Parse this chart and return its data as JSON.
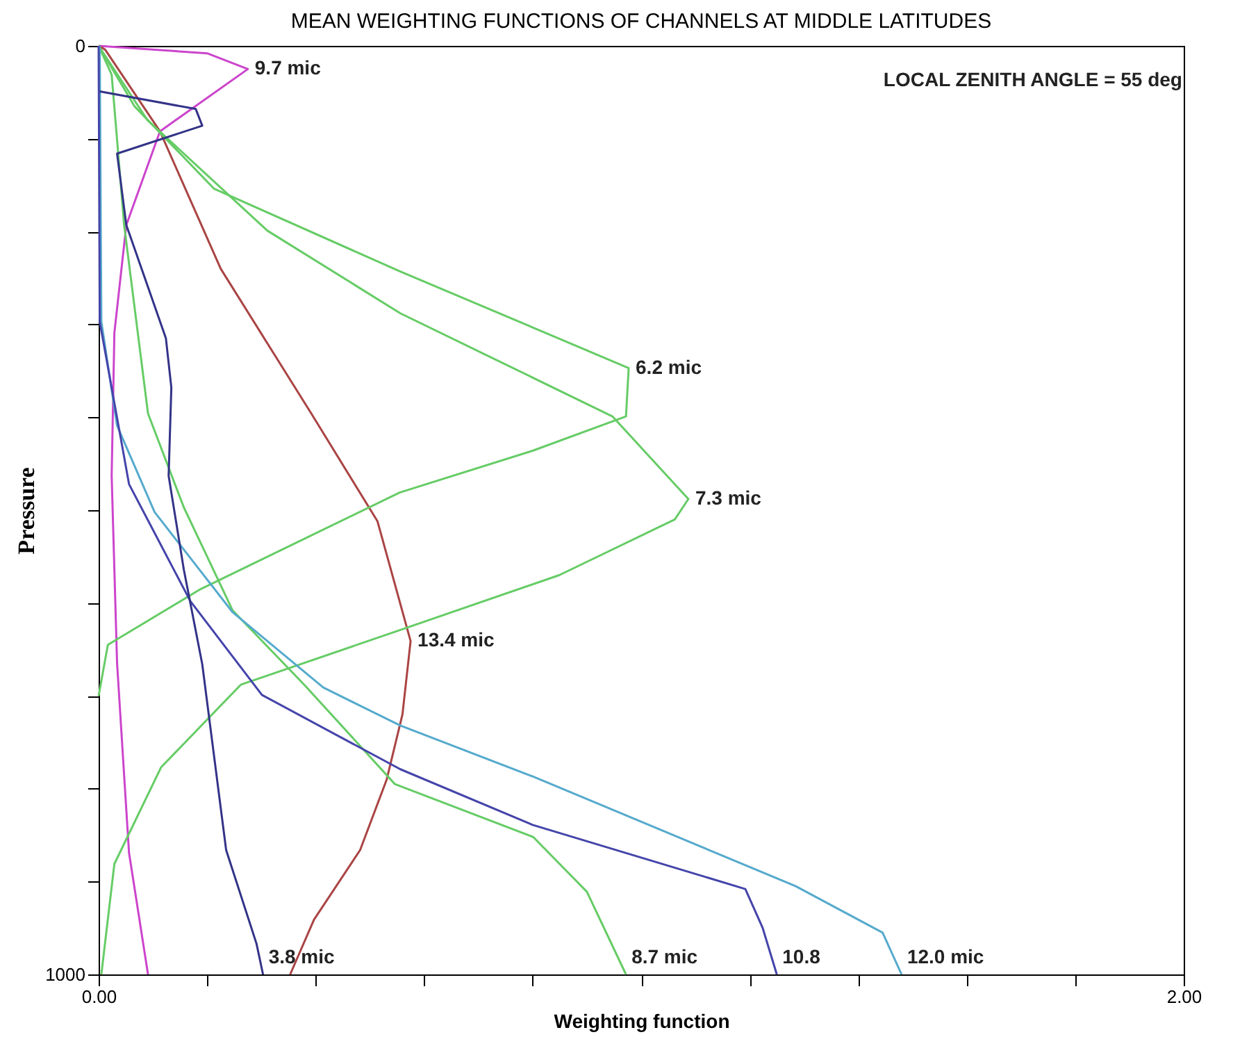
{
  "chart_data": {
    "type": "line",
    "orientation": "horizontal",
    "title": "MEAN WEIGHTING FUNCTIONS OF CHANNELS AT MIDDLE LATITUDES",
    "xlabel": "Weighting function",
    "ylabel": "Pressure",
    "xlim": [
      0,
      2
    ],
    "xticks": [
      {
        "value": 0,
        "label": "0.00"
      },
      {
        "value": 0.2,
        "label": null
      },
      {
        "value": 0.4,
        "label": null
      },
      {
        "value": 0.6,
        "label": null
      },
      {
        "value": 0.8,
        "label": null
      },
      {
        "value": 1.0,
        "label": null
      },
      {
        "value": 1.2,
        "label": null
      },
      {
        "value": 1.4,
        "label": null
      },
      {
        "value": 1.6,
        "label": null
      },
      {
        "value": 1.8,
        "label": null
      },
      {
        "value": 2,
        "label": "2.00"
      }
    ],
    "ylim": [
      1000,
      0
    ],
    "yticks": [
      0,
      {
        "value": 100,
        "label": null
      },
      {
        "value": 200,
        "label": null
      },
      {
        "value": 300,
        "label": null
      },
      {
        "value": 400,
        "label": null
      },
      {
        "value": 500,
        "label": null
      },
      {
        "value": 600,
        "label": null
      },
      {
        "value": 700,
        "label": null
      },
      {
        "value": 800,
        "label": null
      },
      {
        "value": 900,
        "label": null
      },
      1000
    ],
    "grid": false,
    "marker": "none",
    "line_style": "solid",
    "series": [
      {
        "name": "9.7 mic",
        "color": "#cc44cc",
        "values": [
          0,
          0.2,
          0.275,
          0.113,
          0.051,
          0.029,
          0.024,
          0.034,
          0.056,
          0.091
        ],
        "x": [
          0,
          8,
          25,
          92,
          193,
          309,
          463,
          665,
          869,
          1000
        ]
      },
      {
        "name": "13.4 mic",
        "color": "#aa4444",
        "values": [
          0,
          0.012,
          0.113,
          0.225,
          0.392,
          0.514,
          0.575,
          0.56,
          0.531,
          0.482,
          0.397,
          0.353
        ],
        "x": [
          0,
          4,
          92,
          240,
          396,
          512,
          641,
          720,
          790,
          866,
          941,
          1000
        ]
      },
      {
        "name": "6.2 mic",
        "color": "#66cc66",
        "values": [
          0,
          0.066,
          0.213,
          0.556,
          0.977,
          0.972,
          0.8,
          0.555,
          0.188,
          0.017,
          0
        ],
        "x": [
          0,
          65,
          154,
          243,
          347,
          399,
          436,
          481,
          585,
          645,
          700
        ]
      },
      {
        "name": "7.3 mic",
        "color": "#66cc66",
        "values": [
          0,
          0.09,
          0.311,
          0.556,
          0.947,
          1.087,
          1.062,
          0.849,
          0.556,
          0.262,
          0.115,
          0.029,
          0.005
        ],
        "x": [
          0,
          80,
          199,
          288,
          399,
          488,
          510,
          570,
          629,
          688,
          777,
          881,
          1000
        ]
      },
      {
        "name": "8.7 mic",
        "color": "#66cc66",
        "values": [
          0,
          0.024,
          0.047,
          0.091,
          0.157,
          0.247,
          0.379,
          0.546,
          0.801,
          0.9,
          0.972
        ],
        "x": [
          0,
          31,
          193,
          396,
          497,
          608,
          688,
          795,
          852,
          911,
          1000
        ]
      },
      {
        "name": "12.0 mic",
        "color": "#55aacc",
        "values": [
          0.002,
          0.005,
          0.034,
          0.103,
          0.247,
          0.414,
          0.556,
          0.801,
          1.285,
          1.445,
          1.48
        ],
        "x": [
          0,
          297,
          409,
          502,
          610,
          691,
          732,
          787,
          905,
          955,
          1000
        ]
      },
      {
        "name": "10.8",
        "color": "#4444aa",
        "values": [
          0,
          0.002,
          0.056,
          0.169,
          0.301,
          0.556,
          0.8,
          1.192,
          1.224,
          1.25
        ],
        "x": [
          0,
          297,
          472,
          598,
          699,
          779,
          839,
          908,
          950,
          1000
        ]
      },
      {
        "name": "3.8 mic",
        "color": "#333388",
        "values": [
          0.002,
          0.179,
          0.191,
          0.034,
          0.051,
          0.124,
          0.134,
          0.129,
          0.157,
          0.191,
          0.235,
          0.291,
          0.303
        ],
        "x": [
          49,
          68,
          86,
          116,
          193,
          315,
          368,
          463,
          564,
          666,
          866,
          967,
          1000
        ]
      }
    ],
    "annotations": [
      "LOCAL ZENITH ANGLE = 55 deg"
    ]
  }
}
